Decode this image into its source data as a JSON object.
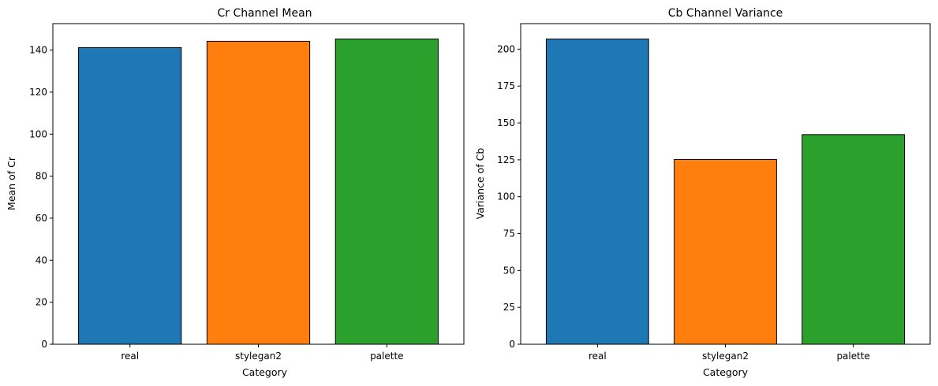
{
  "chart_data": [
    {
      "type": "bar",
      "title": "Cr Channel Mean",
      "xlabel": "Category",
      "ylabel": "Mean of Cr",
      "categories": [
        "real",
        "stylegan2",
        "palette"
      ],
      "values": [
        141.2,
        144.2,
        145.3
      ],
      "colors": [
        "#1f77b4",
        "#ff7f0e",
        "#2ca02c"
      ],
      "ylim": [
        0,
        152.6
      ],
      "yticks": [
        0,
        20,
        40,
        60,
        80,
        100,
        120,
        140
      ],
      "grid": false,
      "legend": "none"
    },
    {
      "type": "bar",
      "title": "Cb Channel Variance",
      "xlabel": "Category",
      "ylabel": "Variance of Cb",
      "categories": [
        "real",
        "stylegan2",
        "palette"
      ],
      "values": [
        206.9,
        125.2,
        142.1
      ],
      "colors": [
        "#1f77b4",
        "#ff7f0e",
        "#2ca02c"
      ],
      "ylim": [
        0,
        217.3
      ],
      "yticks": [
        0,
        25,
        50,
        75,
        100,
        125,
        150,
        175,
        200
      ],
      "grid": false,
      "legend": "none"
    }
  ]
}
